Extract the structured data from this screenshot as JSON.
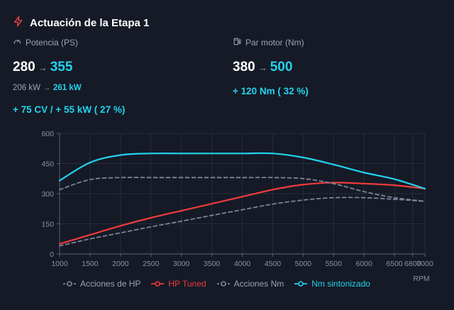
{
  "header": {
    "title": "Actuación de la Etapa 1"
  },
  "power": {
    "label": "Potencia (PS)",
    "stock": "280",
    "tuned": "355",
    "arrow": "→",
    "kw_stock": "206 kW",
    "kw_tuned": "261 kW",
    "gain": "+ 75 CV / + 55 kW ( 27 %)"
  },
  "torque": {
    "label": "Par motor (Nm)",
    "stock": "380",
    "tuned": "500",
    "arrow": "→",
    "gain": "+ 120 Nm ( 32 %)"
  },
  "icons": {
    "title": "lightning-icon",
    "power": "gauge-icon",
    "torque": "fuel-pump-icon"
  },
  "colors": {
    "accent": "#22d3ee",
    "hp_tuned": "#ef3b3b",
    "stock": "#7d849a",
    "title_icon": "#ef4444"
  },
  "chart_data": {
    "type": "line",
    "xlabel": "RPM",
    "xlim": [
      1000,
      7000
    ],
    "ylim": [
      0,
      600
    ],
    "x_ticks": [
      "1000",
      "1500",
      "2000",
      "2500",
      "3000",
      "3500",
      "4000",
      "4500",
      "5000",
      "5500",
      "6000",
      "6500",
      "6800",
      "7000"
    ],
    "y_ticks": [
      "0",
      "150",
      "300",
      "450",
      "600"
    ],
    "grid": true,
    "legend_position": "bottom",
    "series": [
      {
        "name": "Acciones de HP",
        "color": "#7d849a",
        "dash": true,
        "x": [
          1000,
          1500,
          2000,
          2500,
          3000,
          3500,
          4000,
          4500,
          5000,
          5500,
          6000,
          6500,
          7000
        ],
        "values": [
          40,
          75,
          105,
          135,
          163,
          192,
          220,
          248,
          268,
          280,
          280,
          272,
          262
        ]
      },
      {
        "name": "HP Tuned",
        "color": "#ef3b3b",
        "dash": false,
        "x": [
          1000,
          1500,
          2000,
          2500,
          3000,
          3500,
          4000,
          4500,
          5000,
          5500,
          6000,
          6500,
          7000
        ],
        "values": [
          50,
          95,
          140,
          180,
          215,
          250,
          285,
          320,
          345,
          355,
          350,
          342,
          325
        ]
      },
      {
        "name": "Acciones Nm",
        "color": "#7d849a",
        "dash": true,
        "x": [
          1000,
          1500,
          2000,
          2500,
          3000,
          3500,
          4000,
          4500,
          5000,
          5500,
          6000,
          6500,
          7000
        ],
        "values": [
          320,
          370,
          380,
          380,
          380,
          380,
          380,
          380,
          375,
          350,
          310,
          280,
          262
        ]
      },
      {
        "name": "Nm sintonizado",
        "color": "#22d3ee",
        "dash": false,
        "x": [
          1000,
          1500,
          2000,
          2500,
          3000,
          3500,
          4000,
          4500,
          5000,
          5500,
          6000,
          6500,
          7000
        ],
        "values": [
          365,
          455,
          492,
          500,
          500,
          500,
          500,
          500,
          480,
          445,
          405,
          372,
          325
        ]
      }
    ]
  }
}
